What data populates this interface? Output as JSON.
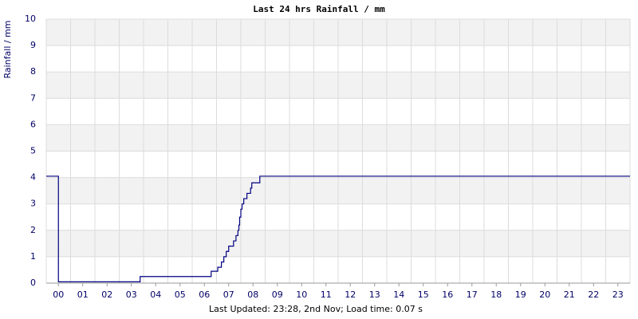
{
  "chart_data": {
    "type": "line",
    "title": "Last 24 hrs Rainfall / mm",
    "y_label": "Rainfall / mm",
    "footer": "Last Updated: 23:28, 2nd Nov; Load time: 0.07 s",
    "xlim": [
      -0.5,
      23.5
    ],
    "xticks": [
      {
        "value": 0,
        "label": "00"
      },
      {
        "value": 1,
        "label": "01"
      },
      {
        "value": 2,
        "label": "02"
      },
      {
        "value": 3,
        "label": "03"
      },
      {
        "value": 4,
        "label": "04"
      },
      {
        "value": 5,
        "label": "05"
      },
      {
        "value": 6,
        "label": "06"
      },
      {
        "value": 7,
        "label": "07"
      },
      {
        "value": 8,
        "label": "08"
      },
      {
        "value": 9,
        "label": "09"
      },
      10,
      11,
      12,
      13,
      14,
      15,
      16,
      17,
      18,
      19,
      20,
      21,
      22,
      23
    ],
    "ylim": [
      0,
      10
    ],
    "yticks": [
      0,
      1,
      2,
      3,
      4,
      5,
      6,
      7,
      8,
      9,
      10
    ],
    "grid": true,
    "series": [
      {
        "color": "#000080",
        "x": [
          -0.5,
          0.0,
          0.0,
          3.36,
          3.36,
          6.28,
          6.28,
          6.55,
          6.55,
          6.7,
          6.7,
          6.8,
          6.8,
          6.9,
          6.9,
          7.0,
          7.0,
          7.2,
          7.2,
          7.3,
          7.3,
          7.38,
          7.38,
          7.42,
          7.42,
          7.45,
          7.45,
          7.5,
          7.5,
          7.55,
          7.55,
          7.62,
          7.62,
          7.75,
          7.75,
          7.9,
          7.9,
          7.95,
          7.95,
          8.28,
          8.28,
          23.5
        ],
        "values": [
          4.05,
          4.05,
          0.05,
          0.05,
          0.25,
          0.25,
          0.45,
          0.45,
          0.6,
          0.6,
          0.8,
          0.8,
          1.0,
          1.0,
          1.2,
          1.2,
          1.4,
          1.4,
          1.6,
          1.6,
          1.8,
          1.8,
          2.0,
          2.0,
          2.2,
          2.2,
          2.5,
          2.5,
          2.8,
          2.8,
          3.0,
          3.0,
          3.2,
          3.2,
          3.4,
          3.4,
          3.6,
          3.6,
          3.8,
          3.8,
          4.05,
          4.05
        ]
      }
    ]
  }
}
